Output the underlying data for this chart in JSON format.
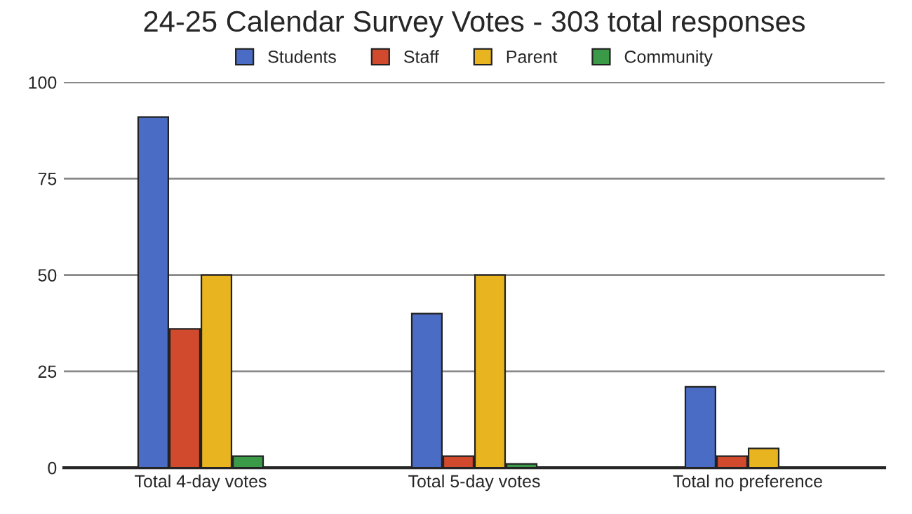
{
  "chart_data": {
    "type": "bar",
    "title": "24-25 Calendar Survey Votes - 303 total responses",
    "categories": [
      "Total 4-day votes",
      "Total 5-day votes",
      "Total no preference"
    ],
    "series": [
      {
        "name": "Students",
        "color": "#4a6cc4",
        "values": [
          91,
          40,
          21
        ]
      },
      {
        "name": "Staff",
        "color": "#d24a2e",
        "values": [
          36,
          3,
          3
        ]
      },
      {
        "name": "Parent",
        "color": "#e8b520",
        "values": [
          50,
          50,
          5
        ]
      },
      {
        "name": "Community",
        "color": "#3a9a48",
        "values": [
          3,
          1,
          null
        ]
      }
    ],
    "ylim": [
      0,
      100
    ],
    "yticks": [
      0,
      25,
      50,
      75,
      100
    ],
    "grid": "y",
    "legend": "top"
  }
}
